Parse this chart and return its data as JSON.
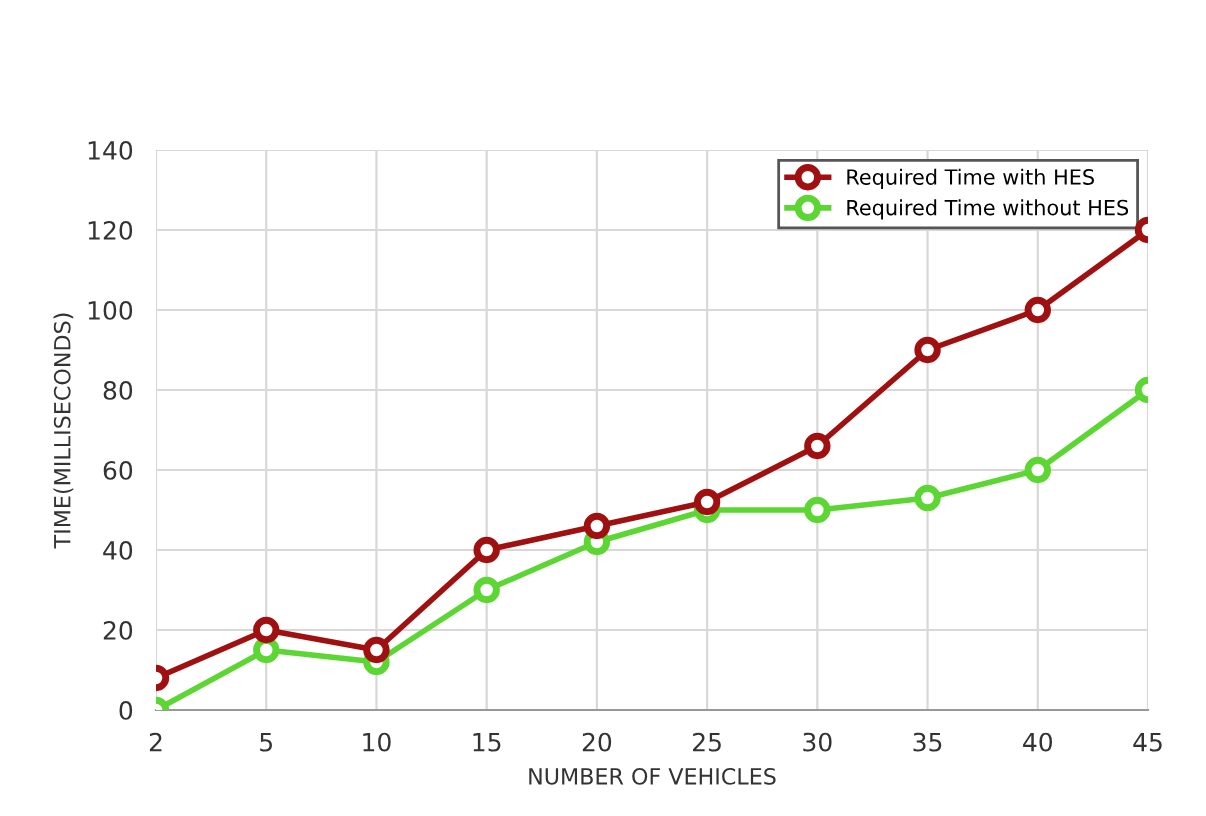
{
  "chart_data": {
    "type": "line",
    "xlabel": "NUMBER OF VEHICLES",
    "ylabel": "TIME(MILLISECONDS)",
    "categories": [
      "2",
      "5",
      "10",
      "15",
      "20",
      "25",
      "30",
      "35",
      "40",
      "45"
    ],
    "series": [
      {
        "name": "Required Time with HES",
        "color": "#a01010",
        "values": [
          8,
          20,
          15,
          40,
          46,
          52,
          66,
          90,
          100,
          120
        ]
      },
      {
        "name": "Required Time without HES",
        "color": "#5cd632",
        "values": [
          0,
          15,
          12,
          30,
          42,
          50,
          50,
          53,
          60,
          80
        ]
      }
    ],
    "ylim": [
      0,
      140
    ],
    "yticks": [
      0,
      20,
      40,
      60,
      80,
      100,
      120,
      140
    ],
    "grid": true,
    "legend": "top right",
    "marker": "circle",
    "line_style": "solid"
  }
}
